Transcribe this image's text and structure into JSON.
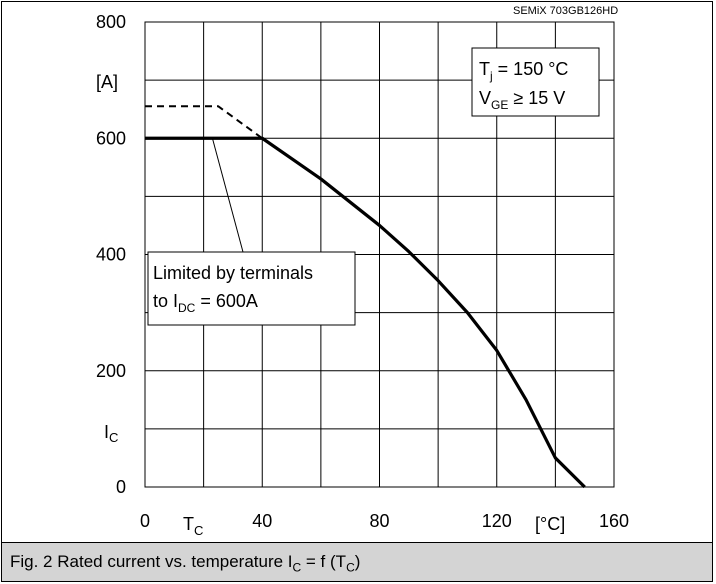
{
  "chart_data": {
    "type": "line",
    "title": "",
    "model_label": "SEMiX 703GB126HD",
    "xlabel": {
      "symbol": "T",
      "sub": "C",
      "unit": "[°C]"
    },
    "ylabel": {
      "symbol": "I",
      "sub": "C",
      "unit": "[A]"
    },
    "xlim": [
      0,
      160
    ],
    "ylim": [
      0,
      800
    ],
    "x_ticks": [
      0,
      40,
      80,
      120,
      160
    ],
    "y_ticks": [
      0,
      200,
      400,
      600,
      800
    ],
    "grid": true,
    "x_grid_step": 20,
    "y_grid_step": 100,
    "series": [
      {
        "style": "solid",
        "x": [
          0,
          40,
          50,
          60,
          70,
          80,
          90,
          100,
          110,
          120,
          130,
          140,
          150
        ],
        "y": [
          600,
          600,
          565,
          530,
          490,
          450,
          405,
          355,
          300,
          235,
          150,
          50,
          0
        ]
      },
      {
        "style": "dashed",
        "x": [
          0,
          25,
          40
        ],
        "y": [
          655,
          655,
          600
        ]
      }
    ],
    "legend_box": {
      "line1": {
        "main": "T",
        "sub": "j",
        "rest": " = 150 °C"
      },
      "line2": {
        "main": "V",
        "sub": "GE",
        "rest": " ≥ 15 V"
      }
    },
    "annotation": {
      "line1": "Limited by terminals",
      "line2": {
        "prefix": "to I",
        "sub": "DC",
        "rest": " = 600A"
      },
      "pointer_to": {
        "x": 23,
        "y": 600
      }
    }
  },
  "caption": {
    "prefix": "Fig. 2 Rated current vs. temperature I",
    "sub1": "C",
    "middle": " = f (T",
    "sub2": "C",
    "suffix": ")"
  }
}
